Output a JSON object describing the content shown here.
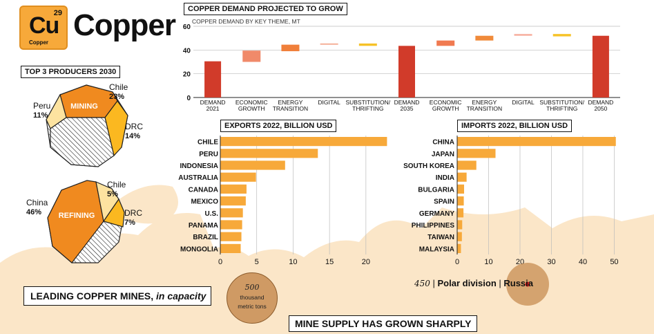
{
  "header": {
    "symbol": "Cu",
    "atomic_number": "29",
    "element_name": "Copper",
    "title": "Copper"
  },
  "producers": {
    "title": "TOP 3 PRODUCERS 2030",
    "mining": {
      "label": "MINING",
      "shares": [
        {
          "country": "Chile",
          "percent": "23%",
          "value": 23
        },
        {
          "country": "Peru",
          "percent": "11%",
          "value": 11
        },
        {
          "country": "DRC",
          "percent": "14%",
          "value": 14
        }
      ]
    },
    "refining": {
      "label": "REFINING",
      "shares": [
        {
          "country": "China",
          "percent": "46%",
          "value": 46
        },
        {
          "country": "Chile",
          "percent": "5%",
          "value": 5
        },
        {
          "country": "DRC",
          "percent": "7%",
          "value": 7
        }
      ]
    }
  },
  "chart_data": [
    {
      "type": "bar",
      "title": "COPPER DEMAND PROJECTED TO GROW",
      "subtitle": "COPPER DEMAND BY KEY THEME, MT",
      "ylim": [
        0,
        60
      ],
      "yticks": [
        0,
        20,
        40,
        60
      ],
      "categories": [
        "DEMAND 2021",
        "ECONOMIC GROWTH",
        "ENERGY TRANSITION",
        "DIGITAL",
        "SUBSTITUTION/ THRIFTING",
        "DEMAND 2035",
        "ECONOMIC GROWTH",
        "ENERGY TRANSITION",
        "DIGITAL",
        "SUBSTITUTION/ THRIFTING",
        "DEMAND 2050"
      ],
      "bars": [
        {
          "kind": "total",
          "base": 0,
          "top": 30.5,
          "color": "#d13b2a"
        },
        {
          "kind": "step",
          "base": 30,
          "top": 39.5,
          "color": "#f08a6a"
        },
        {
          "kind": "step",
          "base": 39,
          "top": 44.5,
          "color": "#f07f3a"
        },
        {
          "kind": "step",
          "base": 44.5,
          "top": 45.5,
          "color": "#f4a58a"
        },
        {
          "kind": "step",
          "base": 43.5,
          "top": 45.5,
          "color": "#f6c227"
        },
        {
          "kind": "total",
          "base": 0,
          "top": 43.5,
          "color": "#d13b2a"
        },
        {
          "kind": "step",
          "base": 43.5,
          "top": 48,
          "color": "#f07a50"
        },
        {
          "kind": "step",
          "base": 48,
          "top": 52,
          "color": "#f08a3a"
        },
        {
          "kind": "step",
          "base": 52,
          "top": 53.5,
          "color": "#f7b0a0"
        },
        {
          "kind": "step",
          "base": 51.5,
          "top": 53.5,
          "color": "#f6c227"
        },
        {
          "kind": "total",
          "base": 0,
          "top": 52,
          "color": "#d13b2a"
        }
      ]
    },
    {
      "type": "bar",
      "orientation": "horizontal",
      "title": "EXPORTS 2022, BILLION USD",
      "categories": [
        "CHILE",
        "PERU",
        "INDONESIA",
        "AUSTRALIA",
        "CANADA",
        "MEXICO",
        "U.S.",
        "PANAMA",
        "BRAZIL",
        "MONGOLIA"
      ],
      "values": [
        22.9,
        13.4,
        8.9,
        4.9,
        3.6,
        3.5,
        3.1,
        3.0,
        2.9,
        2.8
      ],
      "xlim": [
        0,
        24
      ],
      "xticks": [
        0,
        5,
        10,
        15,
        20
      ],
      "color": "#f7a93a"
    },
    {
      "type": "bar",
      "orientation": "horizontal",
      "title": "IMPORTS 2022, BILLION USD",
      "categories": [
        "CHINA",
        "JAPAN",
        "SOUTH KOREA",
        "INDIA",
        "BULGARIA",
        "SPAIN",
        "GERMANY",
        "PHILIPPINES",
        "TAIWAN",
        "MALAYSIA"
      ],
      "values": [
        50.5,
        12.2,
        6.1,
        3.0,
        2.2,
        2.1,
        2.0,
        1.6,
        1.5,
        1.2
      ],
      "xlim": [
        0,
        51
      ],
      "xticks": [
        0,
        10,
        20,
        30,
        40,
        50
      ],
      "color": "#f7a93a"
    }
  ],
  "legend": {
    "text": "LEADING COPPER MINES,",
    "italic": "in capacity",
    "bubble_value": "500",
    "bubble_unit_1": "thousand",
    "bubble_unit_2": "metric tons"
  },
  "mine_note": {
    "value": "450",
    "name": "Polar division",
    "country": "Russia"
  },
  "supply_title": "MINE SUPPLY HAS GROWN SHARPLY",
  "colors": {
    "accent": "#f7a93a",
    "demand_total": "#d13b2a",
    "pie_dark": "#f08a1f",
    "pie_gold": "#fbb820",
    "pie_light": "#fde3a0"
  }
}
